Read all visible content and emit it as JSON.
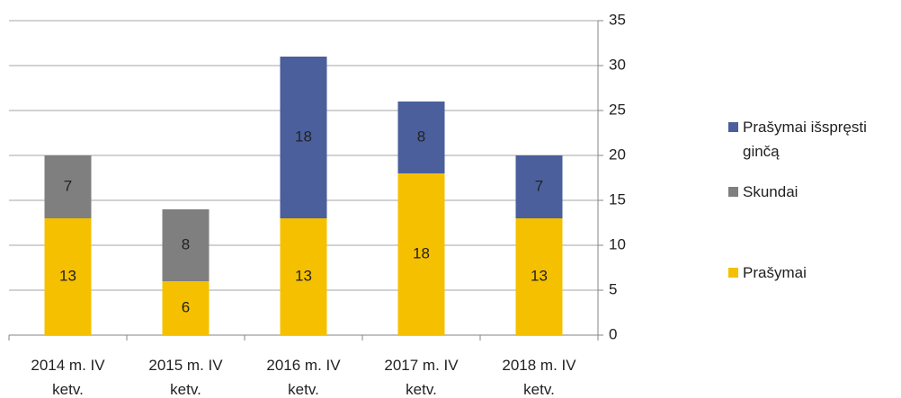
{
  "chart_data": {
    "type": "stacked_bar",
    "categories": [
      "2014 m. IV ketv.",
      "2015 m. IV ketv.",
      "2016 m. IV ketv.",
      "2017 m. IV ketv.",
      "2018 m. IV ketv."
    ],
    "series": [
      {
        "name": "Prašymai",
        "color": "#f5c000",
        "values": [
          13,
          6,
          13,
          18,
          13
        ]
      },
      {
        "name": "Skundai",
        "color": "#7f7f7f",
        "values": [
          7,
          8,
          null,
          null,
          null
        ]
      },
      {
        "name": "Prašymai išspręsti ginčą",
        "color": "#4a5f9c",
        "values": [
          null,
          null,
          18,
          8,
          7
        ]
      }
    ],
    "ylim": [
      0,
      35
    ],
    "yticks": [
      0,
      5,
      10,
      15,
      20,
      25,
      30,
      35
    ],
    "grid": true,
    "legend": "right"
  }
}
